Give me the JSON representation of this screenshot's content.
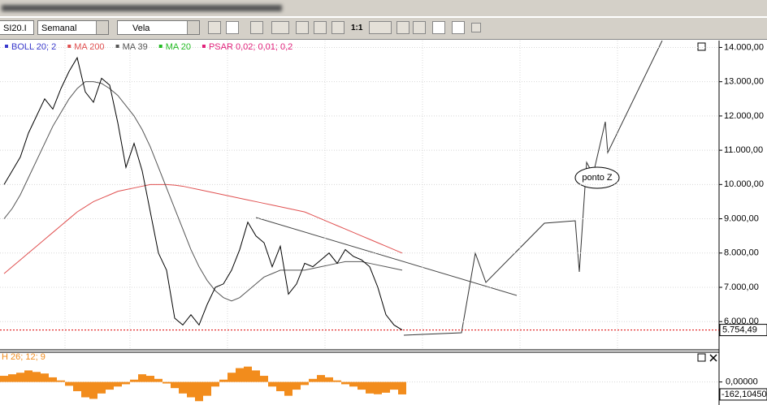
{
  "toolbar": {
    "symbol": "SI20.I",
    "period": "Semanal",
    "style": "Vela",
    "zoom": "1:1"
  },
  "annotation": "ponto Z",
  "chart_data": [
    {
      "type": "line",
      "series": [
        {
          "name": "BOLL 20; 2",
          "color": "#3a3acc"
        },
        {
          "name": "MA 200",
          "color": "#e05050",
          "values": [
            7400,
            7600,
            7800,
            8000,
            8200,
            8400,
            8600,
            8800,
            9000,
            9200,
            9350,
            9500,
            9600,
            9700,
            9800,
            9850,
            9900,
            9950,
            10000,
            10000,
            10000,
            9980,
            9950,
            9900,
            9850,
            9800,
            9750,
            9700,
            9650,
            9600,
            9550,
            9500,
            9450,
            9400,
            9350,
            9300,
            9250,
            9200,
            9100,
            9000,
            8900,
            8800,
            8700,
            8600,
            8500,
            8400,
            8300,
            8200,
            8100,
            8000
          ]
        },
        {
          "name": "MA 39",
          "color": "#555555",
          "values": [
            9000,
            9300,
            9700,
            10200,
            10700,
            11200,
            11700,
            12100,
            12500,
            12800,
            13000,
            13000,
            12950,
            12800,
            12600,
            12300,
            12000,
            11600,
            11100,
            10500,
            9900,
            9300,
            8700,
            8100,
            7600,
            7200,
            6900,
            6700,
            6600,
            6700,
            6900,
            7100,
            7300,
            7400,
            7500,
            7500,
            7500,
            7500,
            7550,
            7600,
            7650,
            7700,
            7750,
            7750,
            7750,
            7700,
            7650,
            7600,
            7550,
            7500
          ]
        },
        {
          "name": "MA 20",
          "color": "#22bb22"
        },
        {
          "name": "PSAR 0,02; 0,01; 0,2",
          "color": "#e0207a"
        }
      ],
      "price": {
        "color": "#000000",
        "values": [
          10000,
          10400,
          10800,
          11500,
          12000,
          12500,
          12200,
          12800,
          13300,
          13700,
          12700,
          12400,
          13100,
          12900,
          11800,
          10500,
          11200,
          10400,
          9200,
          8000,
          7500,
          6100,
          5900,
          6200,
          5900,
          6500,
          7000,
          7100,
          7500,
          8100,
          8900,
          8500,
          8300,
          7600,
          8200,
          6800,
          7100,
          7700,
          7600,
          7800,
          8000,
          7700,
          8100,
          7900,
          7800,
          7600,
          7000,
          6200,
          5900,
          5754.49
        ],
        "value_labels": [
          null,
          null,
          null,
          null,
          null,
          null,
          null,
          null,
          null,
          null,
          null,
          null,
          null,
          null,
          null,
          null,
          null,
          null,
          null,
          null,
          null,
          null,
          null,
          null,
          null,
          null,
          null,
          null,
          null,
          null,
          null,
          null,
          null,
          null,
          null,
          null,
          null,
          null,
          null,
          null,
          null,
          null,
          null,
          null,
          null,
          null,
          null,
          null,
          null,
          "5.754,49"
        ]
      },
      "ylim": [
        5200,
        14200
      ],
      "yticks": [
        {
          "value": 14000,
          "label": "14.000,00"
        },
        {
          "value": 13000,
          "label": "13.000,00"
        },
        {
          "value": 12000,
          "label": "12.000,00"
        },
        {
          "value": 11000,
          "label": "11.000,00"
        },
        {
          "value": 10000,
          "label": "10.000,00"
        },
        {
          "value": 9000,
          "label": "9.000,00"
        },
        {
          "value": 8000,
          "label": "8.000,00"
        },
        {
          "value": 7000,
          "label": "7.000,00"
        },
        {
          "value": 6000,
          "label": "6.000,00"
        }
      ],
      "grid": true
    },
    {
      "type": "bar",
      "title": "H 26; 12; 9",
      "color": "#f28c1c",
      "values": [
        80,
        100,
        120,
        150,
        130,
        110,
        60,
        20,
        -50,
        -120,
        -200,
        -220,
        -150,
        -100,
        -60,
        -30,
        30,
        100,
        80,
        40,
        -20,
        -80,
        -150,
        -200,
        -250,
        -180,
        -60,
        30,
        120,
        180,
        200,
        150,
        80,
        -60,
        -120,
        -180,
        -100,
        -40,
        40,
        90,
        60,
        20,
        -30,
        -60,
        -100,
        -150,
        -160,
        -140,
        -100,
        -162.1045
      ],
      "value_labels": [
        null,
        null,
        null,
        null,
        null,
        null,
        null,
        null,
        null,
        null,
        null,
        null,
        null,
        null,
        null,
        null,
        null,
        null,
        null,
        null,
        null,
        null,
        null,
        null,
        null,
        null,
        null,
        null,
        null,
        null,
        null,
        null,
        null,
        null,
        null,
        null,
        null,
        null,
        null,
        null,
        null,
        null,
        null,
        null,
        null,
        null,
        null,
        null,
        null,
        "-162,10450"
      ],
      "ylim": [
        -300,
        260
      ],
      "yticks": [
        {
          "value": 0,
          "label": "0,00000"
        }
      ]
    }
  ]
}
